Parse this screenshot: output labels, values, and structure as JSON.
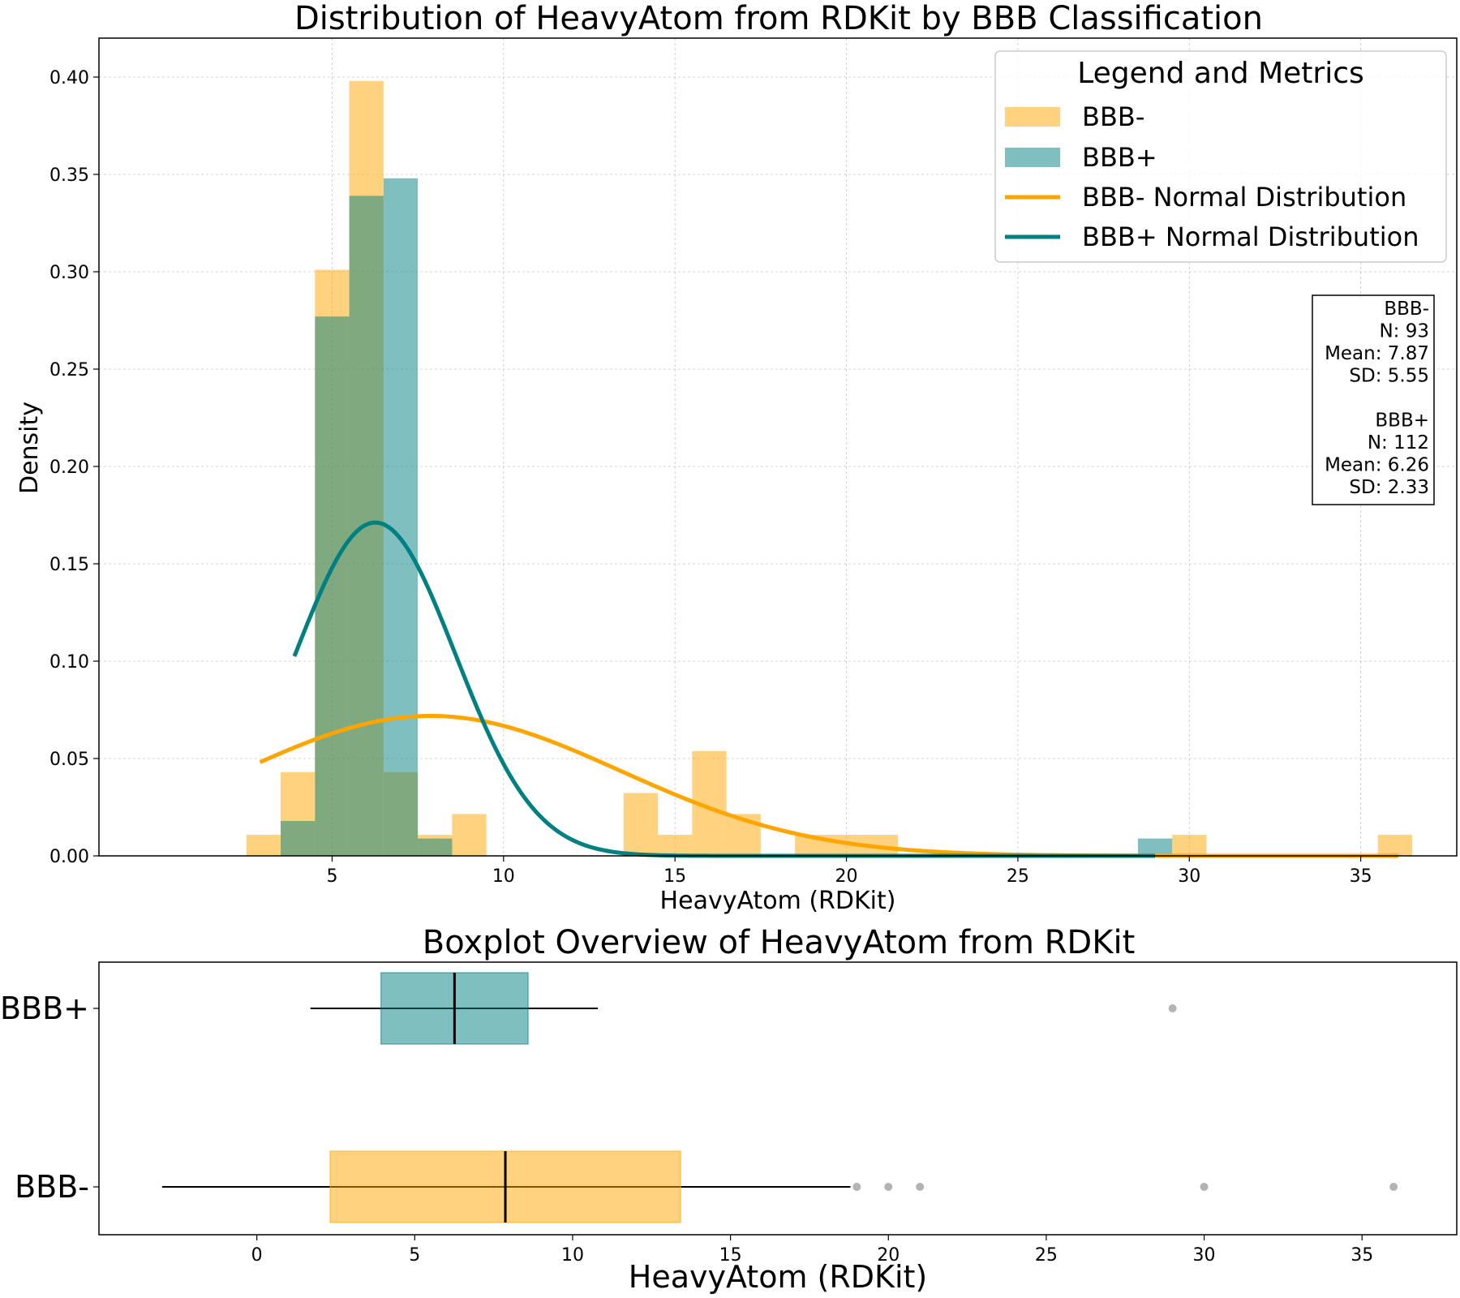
{
  "figure": {
    "background": "#ffffff",
    "colors": {
      "bbb_minus": "#FFA500",
      "bbb_plus": "#008080",
      "outlier": "#808080",
      "grid": "#b0b0b0"
    }
  },
  "chart_data": [
    {
      "type": "bar",
      "subtype": "histogram-with-normal-fit",
      "title": "Distribution of HeavyAtom from RDKit by BBB Classification",
      "xlabel": "HeavyAtom (RDKit)",
      "ylabel": "Density",
      "xlim": [
        -1.8,
        37.8
      ],
      "ylim": [
        0,
        0.42
      ],
      "xticks": [
        5,
        10,
        15,
        20,
        25,
        30,
        35
      ],
      "yticks": [
        0.0,
        0.05,
        0.1,
        0.15,
        0.2,
        0.25,
        0.3,
        0.35,
        0.4
      ],
      "ytick_labels": [
        "0.00",
        "0.05",
        "0.10",
        "0.15",
        "0.20",
        "0.25",
        "0.30",
        "0.35",
        "0.40"
      ],
      "grid": true,
      "legend": {
        "title": "Legend and Metrics",
        "position": "top-right",
        "entries": [
          {
            "label": "BBB-",
            "kind": "patch",
            "series": "bbb_minus"
          },
          {
            "label": "BBB+",
            "kind": "patch",
            "series": "bbb_plus"
          },
          {
            "label": "BBB- Normal Distribution",
            "kind": "line",
            "series": "bbb_minus"
          },
          {
            "label": "BBB+ Normal Distribution",
            "kind": "line",
            "series": "bbb_plus"
          }
        ]
      },
      "metrics_box": {
        "lines": [
          "BBB-",
          "N: 93",
          "Mean: 7.87",
          "SD: 5.55",
          "",
          "BBB+",
          "N: 112",
          "Mean: 6.26",
          "SD: 2.33"
        ]
      },
      "histograms": [
        {
          "name": "BBB-",
          "series": "bbb_minus",
          "alpha": 0.5,
          "bins": [
            {
              "x0": 2.5,
              "x1": 3.5,
              "density": 0.0108
            },
            {
              "x0": 3.5,
              "x1": 4.5,
              "density": 0.043
            },
            {
              "x0": 4.5,
              "x1": 5.5,
              "density": 0.301
            },
            {
              "x0": 5.5,
              "x1": 6.5,
              "density": 0.398
            },
            {
              "x0": 6.5,
              "x1": 7.5,
              "density": 0.043
            },
            {
              "x0": 7.5,
              "x1": 8.5,
              "density": 0.0108
            },
            {
              "x0": 8.5,
              "x1": 9.5,
              "density": 0.0215
            },
            {
              "x0": 13.5,
              "x1": 14.5,
              "density": 0.0323
            },
            {
              "x0": 14.5,
              "x1": 15.5,
              "density": 0.0108
            },
            {
              "x0": 15.5,
              "x1": 16.5,
              "density": 0.0538
            },
            {
              "x0": 16.5,
              "x1": 17.5,
              "density": 0.0215
            },
            {
              "x0": 18.5,
              "x1": 19.5,
              "density": 0.0108
            },
            {
              "x0": 19.5,
              "x1": 20.5,
              "density": 0.0108
            },
            {
              "x0": 20.5,
              "x1": 21.5,
              "density": 0.0108
            },
            {
              "x0": 29.5,
              "x1": 30.5,
              "density": 0.0108
            },
            {
              "x0": 35.5,
              "x1": 36.5,
              "density": 0.0108
            }
          ]
        },
        {
          "name": "BBB+",
          "series": "bbb_plus",
          "alpha": 0.5,
          "bins": [
            {
              "x0": 3.5,
              "x1": 4.5,
              "density": 0.0179
            },
            {
              "x0": 4.5,
              "x1": 5.5,
              "density": 0.277
            },
            {
              "x0": 5.5,
              "x1": 6.5,
              "density": 0.339
            },
            {
              "x0": 6.5,
              "x1": 7.5,
              "density": 0.348
            },
            {
              "x0": 7.5,
              "x1": 8.5,
              "density": 0.0089
            },
            {
              "x0": 28.5,
              "x1": 29.5,
              "density": 0.0089
            }
          ]
        }
      ],
      "normal_curves": [
        {
          "name": "BBB- Normal Distribution",
          "series": "bbb_minus",
          "mean": 7.87,
          "sd": 5.55,
          "x_range": [
            2.9,
            36.1
          ]
        },
        {
          "name": "BBB+ Normal Distribution",
          "series": "bbb_plus",
          "mean": 6.26,
          "sd": 2.33,
          "x_range": [
            3.9,
            29.0
          ]
        }
      ]
    },
    {
      "type": "boxplot",
      "title": "Boxplot Overview of HeavyAtom from RDKit",
      "xlabel": "HeavyAtom (RDKit)",
      "xlim": [
        -5.0,
        38.0
      ],
      "xticks": [
        0,
        5,
        10,
        15,
        20,
        25,
        30,
        35
      ],
      "categories": [
        "BBB+",
        "BBB-"
      ],
      "boxes": [
        {
          "name": "BBB+",
          "series": "bbb_plus",
          "whisker_low": 1.7,
          "q1": 3.93,
          "median": 6.26,
          "q3": 8.59,
          "whisker_high": 10.8,
          "outliers": [
            29
          ]
        },
        {
          "name": "BBB-",
          "series": "bbb_minus",
          "whisker_low": -3.0,
          "q1": 2.32,
          "median": 7.87,
          "q3": 13.42,
          "whisker_high": 18.8,
          "outliers": [
            19,
            20,
            21,
            30,
            36
          ]
        }
      ]
    }
  ]
}
